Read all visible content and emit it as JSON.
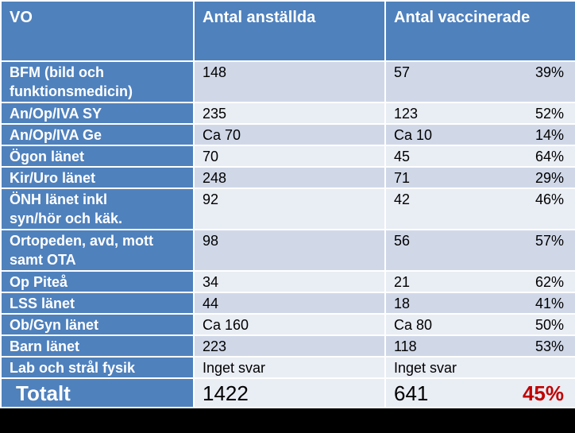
{
  "table": {
    "headers": {
      "vo": "VO",
      "employees": "Antal anställda",
      "vaccinated": "Antal vaccinerade"
    },
    "rows": [
      {
        "vo": [
          "BFM (bild och",
          "funktionsmedicin)"
        ],
        "employees": "148",
        "vaccinated": "57",
        "percent": "39%"
      },
      {
        "vo": [
          "An/Op/IVA SY"
        ],
        "employees": "235",
        "vaccinated": "123",
        "percent": "52%"
      },
      {
        "vo": [
          "An/Op/IVA Ge"
        ],
        "employees": "Ca 70",
        "vaccinated": "Ca 10",
        "percent": "14%"
      },
      {
        "vo": [
          "Ögon länet"
        ],
        "employees": "70",
        "vaccinated": "45",
        "percent": "64%"
      },
      {
        "vo": [
          "Kir/Uro länet"
        ],
        "employees": "248",
        "vaccinated": "71",
        "percent": "29%"
      },
      {
        "vo": [
          "ÖNH länet inkl",
          "syn/hör och käk."
        ],
        "employees": "92",
        "vaccinated": "42",
        "percent": "46%"
      },
      {
        "vo": [
          "Ortopeden, avd, mott",
          "samt OTA"
        ],
        "employees": "98",
        "vaccinated": "56",
        "percent": "57%"
      },
      {
        "vo": [
          "Op Piteå"
        ],
        "employees": "34",
        "vaccinated": "21",
        "percent": "62%"
      },
      {
        "vo": [
          "LSS länet"
        ],
        "employees": "44",
        "vaccinated": "18",
        "percent": "41%"
      },
      {
        "vo": [
          "Ob/Gyn länet"
        ],
        "employees": "Ca 160",
        "vaccinated": "Ca 80",
        "percent": "50%"
      },
      {
        "vo": [
          "Barn länet"
        ],
        "employees": "223",
        "vaccinated": "118",
        "percent": "53%"
      },
      {
        "vo": [
          "Lab och strål fysik"
        ],
        "employees": "Inget svar",
        "vaccinated": "Inget svar",
        "percent": ""
      }
    ],
    "total": {
      "vo": "Totalt",
      "employees": "1422",
      "vaccinated": "641",
      "percent": "45%"
    }
  },
  "colors": {
    "header_bg": "#4f81bd",
    "row_even": "#d0d8e8",
    "row_odd": "#e9edf4",
    "total_percent": "#c00000"
  }
}
